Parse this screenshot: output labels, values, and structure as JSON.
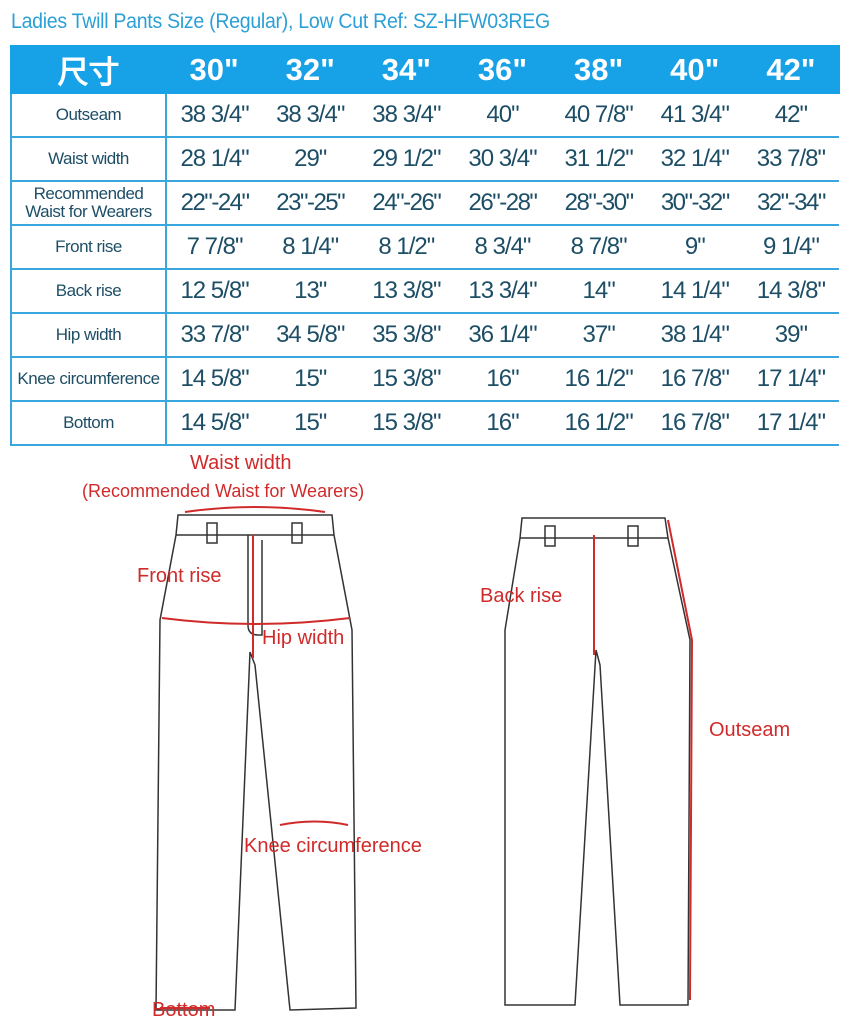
{
  "title": "Ladies Twill Pants Size (Regular), Low Cut  Ref: SZ-HFW03REG",
  "table": {
    "corner": "尺寸",
    "sizes": [
      "30\"",
      "32\"",
      "34\"",
      "36\"",
      "38\"",
      "40\"",
      "42\""
    ],
    "rows": [
      {
        "label": "Outseam",
        "values": [
          "38 3/4",
          "38 3/4",
          "38 3/4",
          "40",
          "40 7/8",
          "41 3/4",
          "42"
        ]
      },
      {
        "label": "Waist width",
        "values": [
          "28 1/4",
          "29",
          "29 1/2",
          "30 3/4",
          "31 1/2",
          "32 1/4",
          "33 7/8"
        ]
      },
      {
        "label": "Recommended Waist for Wearers",
        "values": [
          "22\"-24\"",
          "23\"-25\"",
          "24\"-26\"",
          "26\"-28\"",
          "28\"-30\"",
          "30\"-32\"",
          "32\"-34\""
        ]
      },
      {
        "label": "Front rise",
        "values": [
          "7 7/8",
          "8 1/4",
          "8 1/2",
          "8 3/4",
          "8 7/8",
          "9",
          "9 1/4"
        ]
      },
      {
        "label": "Back rise",
        "values": [
          "12 5/8",
          "13",
          "13 3/8",
          "13 3/4",
          "14",
          "14 1/4",
          "14 3/8"
        ]
      },
      {
        "label": "Hip width",
        "values": [
          "33 7/8",
          "34 5/8",
          "35 3/8",
          "36 1/4",
          "37",
          "38 1/4",
          "39"
        ]
      },
      {
        "label": "Knee circumference",
        "values": [
          "14 5/8",
          "15",
          "15 3/8",
          "16",
          "16 1/2",
          "16 7/8",
          "17 1/4"
        ]
      },
      {
        "label": "Bottom",
        "values": [
          "14 5/8",
          "15",
          "15 3/8",
          "16",
          "16 1/2",
          "16 7/8",
          "17 1/4"
        ]
      }
    ]
  },
  "diagram": {
    "waist_width": "Waist width",
    "recommended": "(Recommended Waist for Wearers)",
    "front_rise": "Front rise",
    "hip_width": "Hip width",
    "knee": "Knee circumference",
    "bottom": "Bottom",
    "back_rise": "Back rise",
    "outseam": "Outseam"
  },
  "colors": {
    "header": "#17a2e8",
    "title": "#2b9fd6",
    "text": "#1d4e66",
    "annotation": "#d02a2a"
  }
}
